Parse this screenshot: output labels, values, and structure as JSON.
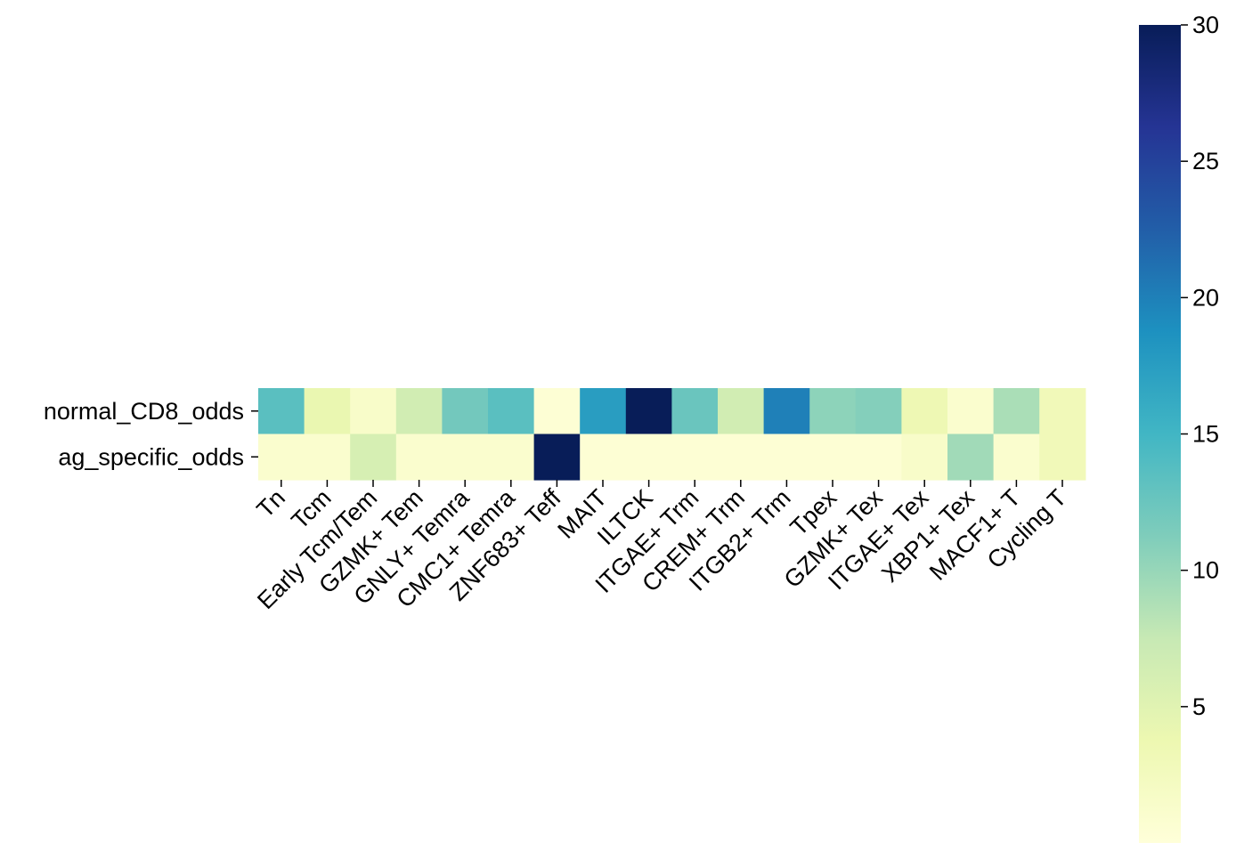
{
  "chart_data": {
    "type": "heatmap",
    "title": "",
    "xlabel": "",
    "ylabel": "",
    "x_categories": [
      "Tn",
      "Tcm",
      "Early Tcm/Tem",
      "GZMK+ Tem",
      "GNLY+ Temra",
      "CMC1+ Temra",
      "ZNF683+ Teff",
      "MAIT",
      "ILTCK",
      "ITGAE+ Trm",
      "CREM+ Trm",
      "ITGB2+ Trm",
      "Tpex",
      "GZMK+ Tex",
      "ITGAE+ Tex",
      "XBP1+ Tex",
      "MACF1+ T",
      "Cycling T"
    ],
    "y_categories": [
      "normal_CD8_odds",
      "ag_specific_odds"
    ],
    "values": [
      [
        13.5,
        4.0,
        1.5,
        6.5,
        12.0,
        13.5,
        0.5,
        17.5,
        30.0,
        12.5,
        6.5,
        20.0,
        10.5,
        11.0,
        3.5,
        1.0,
        9.0,
        3.0
      ],
      [
        1.0,
        1.0,
        6.0,
        1.0,
        1.0,
        1.0,
        30.0,
        0.5,
        0.5,
        0.5,
        0.5,
        0.5,
        0.5,
        0.5,
        1.5,
        9.5,
        1.0,
        3.0
      ]
    ],
    "colorbar": {
      "colormap": "YlGnBu",
      "vmin": 0,
      "vmax": 30,
      "ticks": [
        5,
        10,
        15,
        20,
        25,
        30
      ]
    },
    "colormap_stops": [
      "#ffffd9",
      "#edf8b1",
      "#c7e9b4",
      "#7fcdbb",
      "#41b6c4",
      "#1d91c0",
      "#225ea8",
      "#253494",
      "#081d58"
    ]
  }
}
